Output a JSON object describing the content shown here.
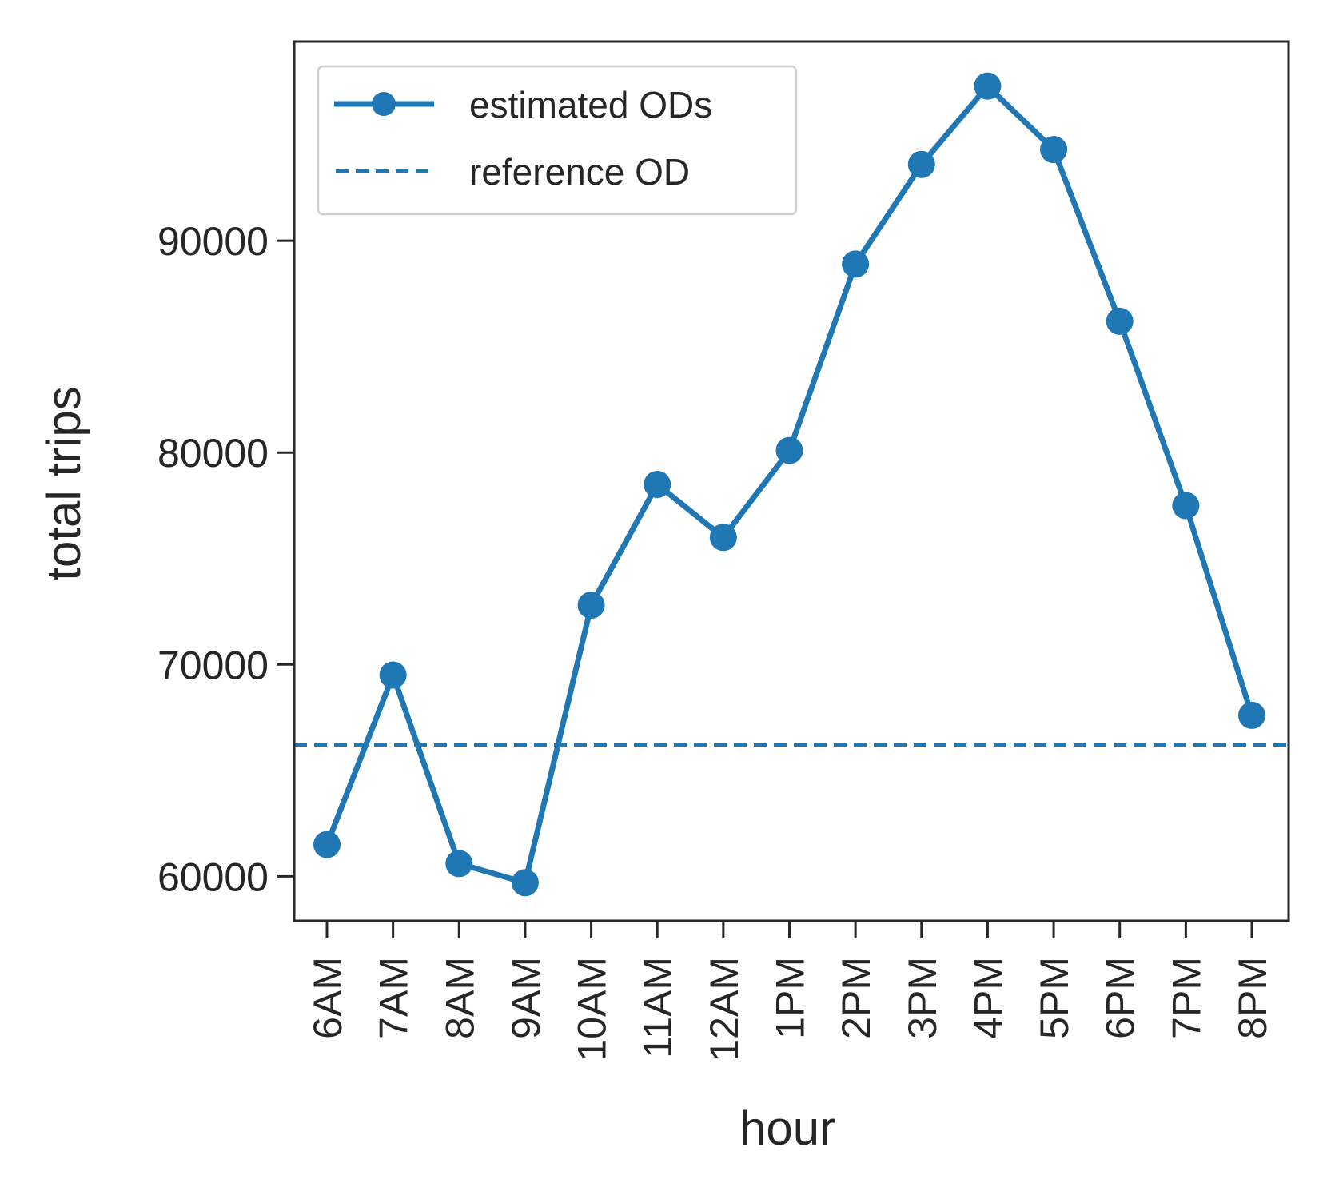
{
  "chart_data": {
    "type": "line",
    "title": "",
    "xlabel": "hour",
    "ylabel": "total trips",
    "categories": [
      "6AM",
      "7AM",
      "8AM",
      "9AM",
      "10AM",
      "11AM",
      "12AM",
      "1PM",
      "2PM",
      "3PM",
      "4PM",
      "5PM",
      "6PM",
      "7PM",
      "8PM"
    ],
    "series": [
      {
        "name": "estimated ODs",
        "values": [
          61500,
          69500,
          60600,
          59700,
          72800,
          78500,
          76000,
          80100,
          88900,
          93600,
          97300,
          94300,
          86200,
          77500,
          67600
        ],
        "color": "#1f77b4",
        "style": "solid-with-markers"
      }
    ],
    "reference_lines": [
      {
        "name": "reference OD",
        "value": 66200,
        "color": "#1f77b4",
        "style": "dashed"
      }
    ],
    "ylim": [
      57900,
      99400
    ],
    "yticks": [
      60000,
      70000,
      80000,
      90000
    ],
    "grid": false,
    "legend_position": "top-left"
  }
}
